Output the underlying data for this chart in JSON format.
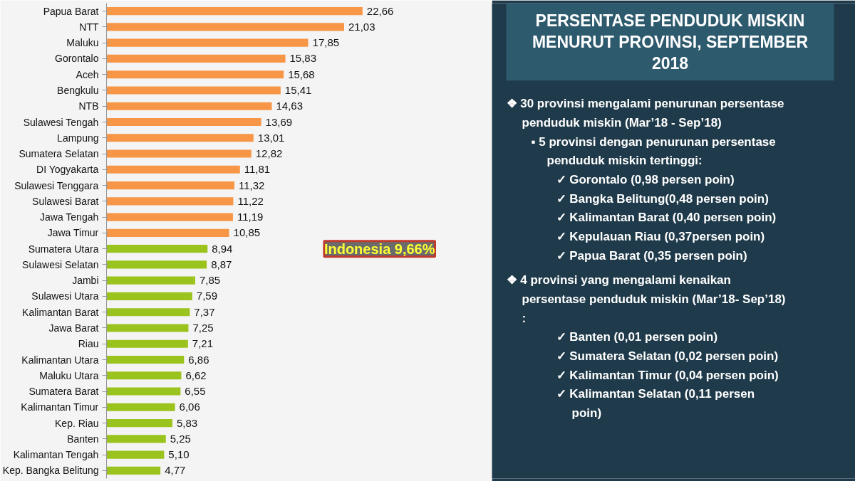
{
  "chart_data": [
    {
      "type": "bar",
      "orientation": "horizontal",
      "value_labels": [
        "22,66",
        "21,03",
        "17,85",
        "15,83",
        "15,68",
        "15,41",
        "14,63",
        "13,69",
        "13,01",
        "12,82",
        "11,81",
        "11,32",
        "11,22",
        "11,19",
        "10,85",
        "8,94",
        "8,87",
        "7,85",
        "7,59",
        "7,37",
        "7,25",
        "7,21",
        "6,86",
        "6,62",
        "6,55",
        "6,06",
        "5,83",
        "5,25",
        "5,10",
        "4,77"
      ],
      "categories": [
        "Papua Barat",
        "NTT",
        "Maluku",
        "Gorontalo",
        "Aceh",
        "Bengkulu",
        "NTB",
        "Sulawesi Tengah",
        "Lampung",
        "Sumatera Selatan",
        "DI Yogyakarta",
        "Sulawesi Tenggara",
        "Sulawesi Barat",
        "Jawa Tengah",
        "Jawa Timur",
        "Sumatera Utara",
        "Sulawesi Selatan",
        "Jambi",
        "Sulawesi Utara",
        "Kalimantan Barat",
        "Jawa Barat",
        "Riau",
        "Kalimantan Utara",
        "Maluku Utara",
        "Sumatera Barat",
        "Kalimantan Timur",
        "Kep. Riau",
        "Banten",
        "Kalimantan Tengah",
        "Kep. Bangka Belitung"
      ],
      "values": [
        22.66,
        21.03,
        17.85,
        15.83,
        15.68,
        15.41,
        14.63,
        13.69,
        13.01,
        12.82,
        11.81,
        11.32,
        11.22,
        11.19,
        10.85,
        8.94,
        8.87,
        7.85,
        7.59,
        7.37,
        7.25,
        7.21,
        6.86,
        6.62,
        6.55,
        6.06,
        5.83,
        5.25,
        5.1,
        4.77
      ],
      "colors": [
        "#f79646",
        "#f79646",
        "#f79646",
        "#f79646",
        "#f79646",
        "#f79646",
        "#f79646",
        "#f79646",
        "#f79646",
        "#f79646",
        "#f79646",
        "#f79646",
        "#f79646",
        "#f79646",
        "#f79646",
        "#9bc31d",
        "#9bc31d",
        "#9bc31d",
        "#9bc31d",
        "#9bc31d",
        "#9bc31d",
        "#9bc31d",
        "#9bc31d",
        "#9bc31d",
        "#9bc31d",
        "#9bc31d",
        "#9bc31d",
        "#9bc31d",
        "#9bc31d",
        "#9bc31d"
      ],
      "annotations": [
        "Indonesia 9,66%"
      ]
    },
    {
      "type": "other",
      "title": "PERSENTASE PENDUDUK MISKIN MENURUT PROVINSI, SEPTEMBER 2018",
      "annotations": [
        "❖ 30 provinsi mengalami penurunan persentase penduduk miskin (Mar’18 - Sep’18)",
        "▪ 5 provinsi dengan penurunan persentase penduduk miskin tertinggi:",
        "✓ Gorontalo (0,98  persen poin)",
        "✓ Bangka Belitung(0,48 persen poin)",
        "✓ Kalimantan Barat (0,40 persen poin)",
        "✓ Kepulauan Riau (0,37persen poin)",
        "✓ Papua Barat (0,35 persen poin)",
        "❖ 4 provinsi yang mengalami kenaikan persentase penduduk miskin (Mar’18- Sep’18) :",
        "✓ Banten (0,01 persen poin)",
        "✓ Sumatera Selatan (0,02 persen poin)",
        "✓ Kalimantan Timur (0,04 persen poin)",
        "✓ Kalimantan Selatan (0,11 persen poin)"
      ]
    }
  ]
}
